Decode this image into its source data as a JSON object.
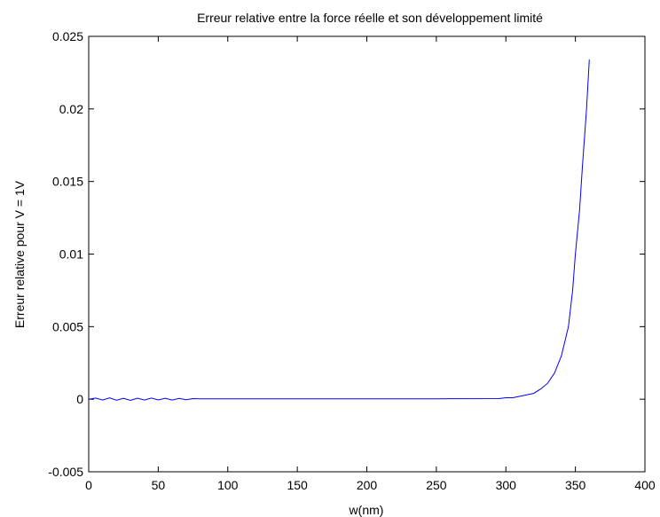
{
  "chart_data": {
    "type": "line",
    "title": "Erreur relative entre la force réelle et son développement limité",
    "xlabel": "w(nm)",
    "ylabel": "Erreur relative pour V = 1V",
    "xlim": [
      0,
      400
    ],
    "ylim": [
      -0.005,
      0.025
    ],
    "xticks": [
      0,
      50,
      100,
      150,
      200,
      250,
      300,
      350,
      400
    ],
    "xtick_labels": [
      "0",
      "50",
      "100",
      "150",
      "200",
      "250",
      "300",
      "350",
      "400"
    ],
    "yticks": [
      -0.005,
      0,
      0.005,
      0.01,
      0.015,
      0.02,
      0.025
    ],
    "ytick_labels": [
      "-0.005",
      "0",
      "0.005",
      "0.01",
      "0.015",
      "0.02",
      "0.025"
    ],
    "grid": false,
    "legend": "none",
    "series": [
      {
        "color": "#0000ff",
        "x": [
          0,
          5,
          10,
          15,
          20,
          25,
          30,
          35,
          40,
          45,
          50,
          55,
          60,
          65,
          70,
          75,
          80,
          85,
          90,
          100,
          150,
          200,
          250,
          295,
          300,
          305,
          310,
          315,
          320,
          325,
          330,
          335,
          340,
          345,
          348,
          350,
          353,
          355,
          358,
          360
        ],
        "y": [
          0,
          8e-05,
          -6e-05,
          9e-05,
          -7e-05,
          6e-05,
          -8e-05,
          7e-05,
          -6e-05,
          8e-05,
          -5e-05,
          6e-05,
          -6e-05,
          5e-05,
          -4e-05,
          4e-05,
          2e-05,
          3e-05,
          3e-05,
          3e-05,
          3e-05,
          3e-05,
          3e-05,
          4e-05,
          0.0001,
          0.0001,
          0.0002,
          0.0003,
          0.0004,
          0.0007,
          0.0011,
          0.0018,
          0.003,
          0.005,
          0.0075,
          0.01,
          0.013,
          0.016,
          0.02,
          0.0234
        ]
      }
    ]
  }
}
